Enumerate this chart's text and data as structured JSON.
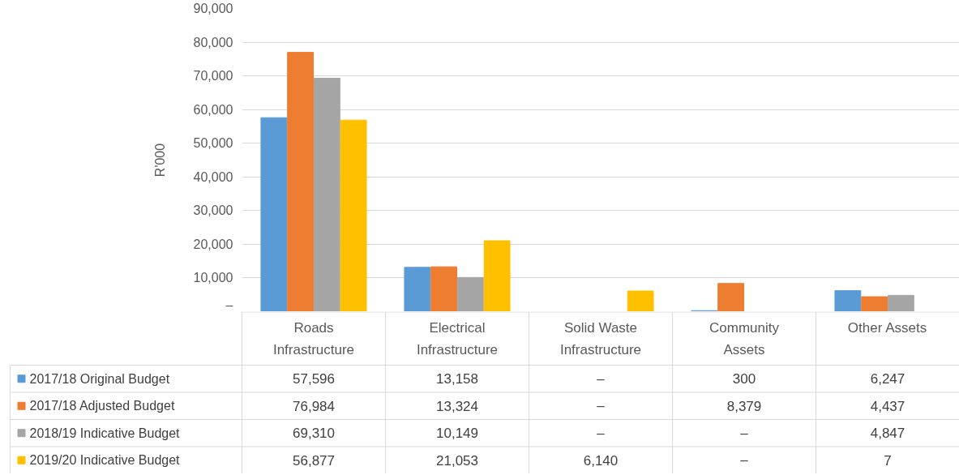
{
  "chart_data": {
    "type": "bar",
    "ylabel": "R'000",
    "categories": [
      "Roads Infrastructure",
      "Electrical Infrastructure",
      "Solid Waste Infrastructure",
      "Community Assets",
      "Other Assets"
    ],
    "series": [
      {
        "name": "2017/18 Original Budget",
        "color": "#5b9bd5",
        "values": [
          57596,
          13158,
          null,
          300,
          6247
        ],
        "value_labels": [
          "57,596",
          "13,158",
          "–",
          "300",
          "6,247"
        ]
      },
      {
        "name": "2017/18 Adjusted Budget",
        "color": "#ed7d31",
        "values": [
          76984,
          13324,
          null,
          8379,
          4437
        ],
        "value_labels": [
          "76,984",
          "13,324",
          "–",
          "8,379",
          "4,437"
        ]
      },
      {
        "name": "2018/19 Indicative Budget",
        "color": "#a5a5a5",
        "values": [
          69310,
          10149,
          null,
          null,
          4847
        ],
        "value_labels": [
          "69,310",
          "10,149",
          "–",
          "–",
          "4,847"
        ]
      },
      {
        "name": "2019/20 Indicative Budget",
        "color": "#ffc000",
        "values": [
          56877,
          21053,
          6140,
          null,
          7
        ],
        "value_labels": [
          "56,877",
          "21,053",
          "6,140",
          "–",
          "7"
        ]
      }
    ],
    "ylim": [
      0,
      90000
    ],
    "yticks": [
      {
        "value": 0,
        "label": "–"
      },
      {
        "value": 10000,
        "label": "10,000"
      },
      {
        "value": 20000,
        "label": "20,000"
      },
      {
        "value": 30000,
        "label": "30,000"
      },
      {
        "value": 40000,
        "label": "40,000"
      },
      {
        "value": 50000,
        "label": "50,000"
      },
      {
        "value": 60000,
        "label": "60,000"
      },
      {
        "value": 70000,
        "label": "70,000"
      },
      {
        "value": 80000,
        "label": "80,000"
      },
      {
        "value": 90000,
        "label": "90,000"
      }
    ],
    "grid": "y",
    "legend": "bottom"
  }
}
